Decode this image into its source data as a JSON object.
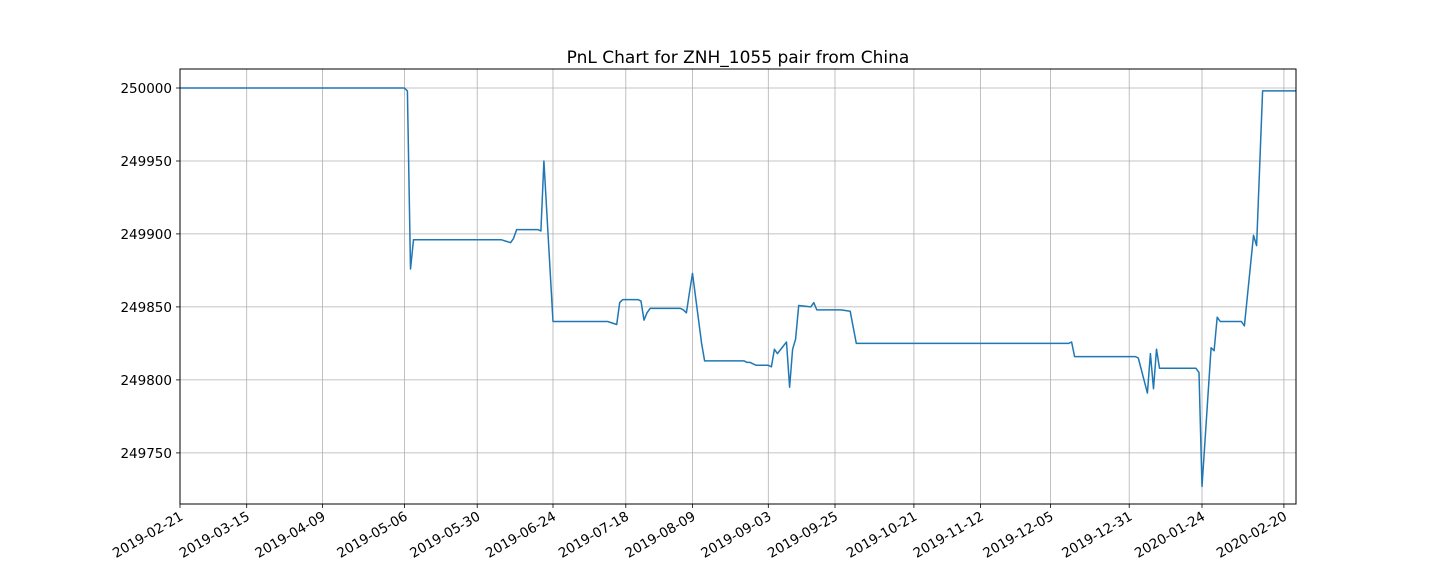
{
  "chart_data": {
    "type": "line",
    "title": "PnL Chart for ZNH_1055 pair from China",
    "xlabel": "",
    "ylabel": "",
    "x_axis": {
      "kind": "date",
      "range": [
        "2019-02-21",
        "2020-02-24"
      ],
      "ticks": [
        "2019-02-21",
        "2019-03-15",
        "2019-04-09",
        "2019-05-06",
        "2019-05-30",
        "2019-06-24",
        "2019-07-18",
        "2019-08-09",
        "2019-09-03",
        "2019-09-25",
        "2019-10-21",
        "2019-11-12",
        "2019-12-05",
        "2019-12-31",
        "2020-01-24",
        "2020-02-20"
      ]
    },
    "y_axis": {
      "range": [
        249715,
        250013
      ],
      "ticks": [
        249750,
        249800,
        249850,
        249900,
        249950,
        250000
      ]
    },
    "grid": true,
    "legend": "none",
    "series": [
      {
        "color": "#1f77b4",
        "points": [
          [
            "2019-02-21",
            250000
          ],
          [
            "2019-05-06",
            250000
          ],
          [
            "2019-05-07",
            249998
          ],
          [
            "2019-05-08",
            249876
          ],
          [
            "2019-05-09",
            249896
          ],
          [
            "2019-06-07",
            249896
          ],
          [
            "2019-06-10",
            249894
          ],
          [
            "2019-06-11",
            249897
          ],
          [
            "2019-06-12",
            249903
          ],
          [
            "2019-06-19",
            249903
          ],
          [
            "2019-06-20",
            249902
          ],
          [
            "2019-06-21",
            249950
          ],
          [
            "2019-06-24",
            249840
          ],
          [
            "2019-07-12",
            249840
          ],
          [
            "2019-07-15",
            249838
          ],
          [
            "2019-07-16",
            249853
          ],
          [
            "2019-07-17",
            249855
          ],
          [
            "2019-07-22",
            249855
          ],
          [
            "2019-07-23",
            249854
          ],
          [
            "2019-07-24",
            249841
          ],
          [
            "2019-07-25",
            249846
          ],
          [
            "2019-07-26",
            249849
          ],
          [
            "2019-08-05",
            249849
          ],
          [
            "2019-08-06",
            249848
          ],
          [
            "2019-08-07",
            249846
          ],
          [
            "2019-08-08",
            249860
          ],
          [
            "2019-08-09",
            249873
          ],
          [
            "2019-08-12",
            249825
          ],
          [
            "2019-08-13",
            249813
          ],
          [
            "2019-08-26",
            249813
          ],
          [
            "2019-08-27",
            249812
          ],
          [
            "2019-08-28",
            249812
          ],
          [
            "2019-08-29",
            249811
          ],
          [
            "2019-08-30",
            249810
          ],
          [
            "2019-09-02",
            249810
          ],
          [
            "2019-09-03",
            249810
          ],
          [
            "2019-09-04",
            249809
          ],
          [
            "2019-09-05",
            249821
          ],
          [
            "2019-09-06",
            249818
          ],
          [
            "2019-09-09",
            249826
          ],
          [
            "2019-09-10",
            249795
          ],
          [
            "2019-09-11",
            249821
          ],
          [
            "2019-09-12",
            249828
          ],
          [
            "2019-09-13",
            249851
          ],
          [
            "2019-09-17",
            249850
          ],
          [
            "2019-09-18",
            249853
          ],
          [
            "2019-09-19",
            249848
          ],
          [
            "2019-09-27",
            249848
          ],
          [
            "2019-09-30",
            249847
          ],
          [
            "2019-10-02",
            249825
          ],
          [
            "2019-12-11",
            249825
          ],
          [
            "2019-12-12",
            249826
          ],
          [
            "2019-12-13",
            249816
          ],
          [
            "2020-01-02",
            249816
          ],
          [
            "2020-01-03",
            249815
          ],
          [
            "2020-01-06",
            249791
          ],
          [
            "2020-01-07",
            249818
          ],
          [
            "2020-01-08",
            249794
          ],
          [
            "2020-01-09",
            249821
          ],
          [
            "2020-01-10",
            249808
          ],
          [
            "2020-01-22",
            249808
          ],
          [
            "2020-01-23",
            249805
          ],
          [
            "2020-01-24",
            249727
          ],
          [
            "2020-01-27",
            249822
          ],
          [
            "2020-01-28",
            249820
          ],
          [
            "2020-01-29",
            249843
          ],
          [
            "2020-01-30",
            249840
          ],
          [
            "2020-02-06",
            249840
          ],
          [
            "2020-02-07",
            249837
          ],
          [
            "2020-02-10",
            249899
          ],
          [
            "2020-02-11",
            249892
          ],
          [
            "2020-02-12",
            249945
          ],
          [
            "2020-02-13",
            249998
          ],
          [
            "2020-02-24",
            249998
          ]
        ]
      }
    ]
  }
}
